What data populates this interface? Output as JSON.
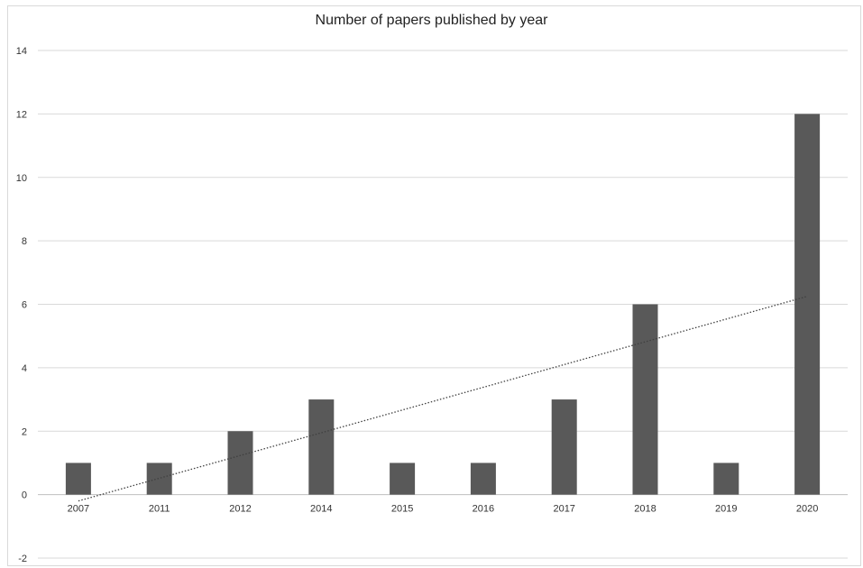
{
  "chart_data": {
    "type": "bar",
    "title": "Number of papers published by year",
    "xlabel": "",
    "ylabel": "",
    "categories": [
      "2007",
      "2011",
      "2012",
      "2014",
      "2015",
      "2016",
      "2017",
      "2018",
      "2019",
      "2020"
    ],
    "values": [
      1,
      1,
      2,
      3,
      1,
      1,
      3,
      6,
      1,
      12
    ],
    "ylim": [
      -2,
      14
    ],
    "yticks": [
      -2,
      0,
      2,
      4,
      6,
      8,
      10,
      12,
      14
    ],
    "grid": true,
    "legend": "none",
    "trendline": {
      "type": "linear",
      "style": "dotted",
      "start": -0.2,
      "end": 6.25
    },
    "colors": {
      "bar": "#595959",
      "grid": "#d9d9d9",
      "trendline": "#404040"
    }
  }
}
